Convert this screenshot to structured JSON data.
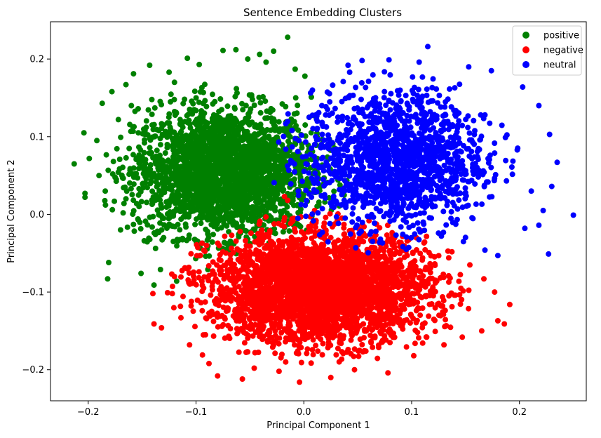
{
  "chart_data": {
    "type": "scatter",
    "title": "Sentence Embedding Clusters",
    "xlabel": "Principal Component 1",
    "ylabel": "Principal Component 2",
    "xlim": [
      -0.235,
      0.262
    ],
    "ylim": [
      -0.24,
      0.248
    ],
    "xticks": [
      -0.2,
      -0.1,
      0.0,
      0.1,
      0.2
    ],
    "xtick_labels": [
      "−0.2",
      "−0.1",
      "0.0",
      "0.1",
      "0.2"
    ],
    "yticks": [
      -0.2,
      -0.1,
      0.0,
      0.1,
      0.2
    ],
    "ytick_labels": [
      "−0.2",
      "−0.1",
      "0.0",
      "0.1",
      "0.2"
    ],
    "grid": false,
    "legend_position": "top-right",
    "series": [
      {
        "name": "positive",
        "color": "#008000",
        "points": [
          [
            -0.213,
            0.065
          ],
          [
            -0.204,
            0.105
          ],
          [
            -0.203,
            0.027
          ],
          [
            -0.199,
            0.072
          ],
          [
            -0.192,
            0.095
          ],
          [
            -0.187,
            0.143
          ],
          [
            -0.184,
            0.012
          ],
          [
            -0.182,
            -0.083
          ],
          [
            -0.181,
            -0.062
          ],
          [
            -0.178,
            0.158
          ],
          [
            -0.172,
            0.122
          ],
          [
            -0.165,
            0.167
          ],
          [
            -0.158,
            0.181
          ],
          [
            -0.151,
            -0.076
          ],
          [
            -0.148,
            -0.034
          ],
          [
            -0.143,
            0.192
          ],
          [
            -0.139,
            -0.091
          ],
          [
            -0.133,
            -0.071
          ],
          [
            -0.125,
            0.183
          ],
          [
            -0.118,
            -0.086
          ],
          [
            -0.108,
            0.201
          ],
          [
            -0.097,
            0.193
          ],
          [
            -0.089,
            -0.071
          ],
          [
            -0.075,
            0.211
          ],
          [
            -0.063,
            0.212
          ],
          [
            -0.052,
            0.2
          ],
          [
            -0.041,
            0.206
          ],
          [
            -0.035,
            0.196
          ],
          [
            -0.028,
            0.21
          ],
          [
            -0.015,
            0.228
          ],
          [
            -0.008,
            0.187
          ],
          [
            0.001,
            0.178
          ],
          [
            0.007,
            0.151
          ],
          [
            0.005,
            0.125
          ],
          [
            0.008,
            0.081
          ],
          [
            0.006,
            0.06
          ],
          [
            0.004,
            0.035
          ],
          [
            -0.002,
            0.018
          ],
          [
            -0.025,
            -0.01
          ],
          [
            -0.07,
            -0.04
          ],
          [
            -0.203,
            0.022
          ],
          [
            -0.17,
            -0.02
          ],
          [
            -0.19,
            0.05
          ],
          [
            -0.16,
            0.14
          ],
          [
            -0.12,
            0.17
          ]
        ],
        "cluster": {
          "cx": -0.075,
          "cy": 0.055,
          "sx": 0.045,
          "sy": 0.045,
          "n": 2600
        }
      },
      {
        "name": "negative",
        "color": "#ff0000",
        "points": [
          [
            -0.139,
            -0.141
          ],
          [
            -0.132,
            -0.146
          ],
          [
            -0.122,
            -0.102
          ],
          [
            -0.106,
            -0.168
          ],
          [
            -0.094,
            -0.181
          ],
          [
            -0.088,
            -0.192
          ],
          [
            -0.08,
            -0.208
          ],
          [
            -0.057,
            -0.212
          ],
          [
            -0.046,
            -0.198
          ],
          [
            -0.023,
            -0.202
          ],
          [
            -0.004,
            -0.216
          ],
          [
            0.025,
            -0.21
          ],
          [
            0.047,
            -0.2
          ],
          [
            0.078,
            -0.204
          ],
          [
            0.102,
            -0.182
          ],
          [
            0.13,
            -0.168
          ],
          [
            0.147,
            -0.158
          ],
          [
            0.165,
            -0.15
          ],
          [
            0.18,
            -0.137
          ],
          [
            0.186,
            -0.141
          ],
          [
            0.191,
            -0.116
          ],
          [
            0.177,
            -0.1
          ],
          [
            0.167,
            -0.083
          ],
          [
            0.154,
            -0.065
          ],
          [
            -0.018,
            0.023
          ],
          [
            -0.015,
            0.018
          ],
          [
            0.01,
            0.005
          ],
          [
            -0.14,
            -0.102
          ],
          [
            -0.12,
            -0.08
          ]
        ],
        "cluster": {
          "cx": 0.015,
          "cy": -0.095,
          "sx": 0.055,
          "sy": 0.038,
          "n": 3400
        }
      },
      {
        "name": "neutral",
        "color": "#0000ff",
        "points": [
          [
            0.041,
            0.192
          ],
          [
            0.054,
            0.198
          ],
          [
            0.079,
            0.199
          ],
          [
            0.107,
            0.196
          ],
          [
            0.115,
            0.216
          ],
          [
            0.153,
            0.19
          ],
          [
            0.174,
            0.185
          ],
          [
            0.203,
            0.164
          ],
          [
            0.218,
            0.14
          ],
          [
            0.228,
            0.103
          ],
          [
            0.235,
            0.067
          ],
          [
            0.25,
            -0.001
          ],
          [
            0.23,
            0.036
          ],
          [
            0.211,
            0.03
          ],
          [
            0.222,
            0.005
          ],
          [
            0.205,
            -0.018
          ],
          [
            0.18,
            -0.053
          ],
          [
            0.168,
            -0.046
          ],
          [
            0.148,
            -0.035
          ],
          [
            0.227,
            -0.051
          ],
          [
            0.008,
            0.16
          ],
          [
            0.005,
            0.125
          ],
          [
            0.011,
            0.1
          ],
          [
            0.002,
            0.065
          ],
          [
            0.018,
            0.045
          ],
          [
            0.218,
            -0.014
          ],
          [
            0.198,
            0.083
          ],
          [
            0.187,
            0.099
          ],
          [
            0.168,
            0.128
          ],
          [
            0.095,
            -0.045
          ]
        ],
        "cluster": {
          "cx": 0.085,
          "cy": 0.07,
          "sx": 0.045,
          "sy": 0.048,
          "n": 1500
        }
      }
    ]
  }
}
